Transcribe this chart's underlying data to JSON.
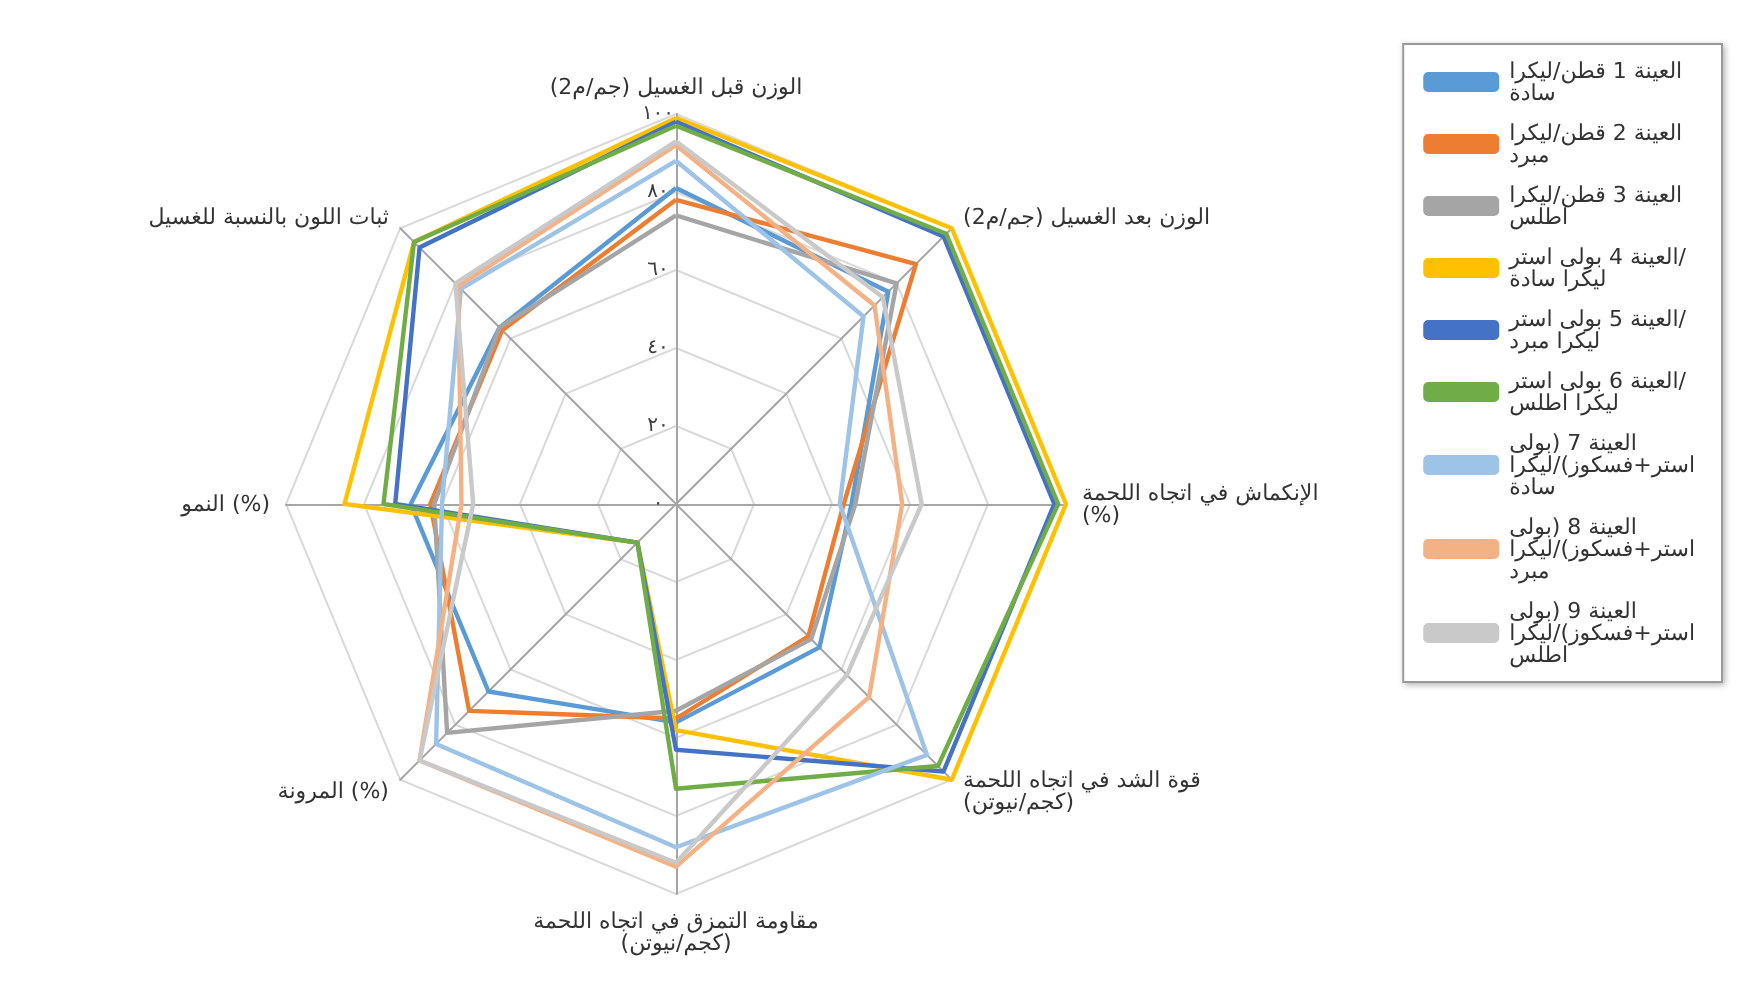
{
  "chart_data": {
    "type": "radar",
    "categories": [
      "الوزن قبل الغسيل (جم/م2)",
      "الوزن بعد الغسيل (جم/م2)",
      "الإنكماش في اتجاه اللحمة (%)",
      "قوة الشد في اتجاه اللحمة (كجم/نيوتن)",
      "مقاومة التمزق في اتجاه اللحمة (كجم/نيوتن)",
      "المرونة (%)",
      "النمو (%)",
      "ثبات اللون بالنسبة للغسيل"
    ],
    "series": [
      {
        "name": "العينة 1 قطن/ليكرا سادة",
        "color": "#5b9bd5",
        "values": [
          81,
          77,
          45,
          52,
          56,
          68,
          68,
          64
        ]
      },
      {
        "name": "العينة 2 قطن/ليكرا مبرد",
        "color": "#ed7d31",
        "values": [
          78,
          87,
          43,
          48,
          55,
          75,
          63,
          63
        ]
      },
      {
        "name": "العينة 3 قطن/ليكرا اطلس",
        "color": "#a5a5a5",
        "values": [
          74,
          80,
          46,
          49,
          53,
          83,
          62,
          64
        ]
      },
      {
        "name": "العينة 4 بولى استر/ليكرا سادة",
        "color": "#ffc000",
        "values": [
          99,
          100,
          100,
          100,
          58,
          14,
          85,
          95
        ]
      },
      {
        "name": "العينة 5 بولى استر/ليكرا مبرد",
        "color": "#4472c4",
        "values": [
          98,
          97,
          97,
          97,
          63,
          14,
          72,
          93
        ]
      },
      {
        "name": "العينة 6 بولى استر/ليكرا اطلس",
        "color": "#70ad47",
        "values": [
          97,
          98,
          98,
          95,
          73,
          14,
          75,
          95
        ]
      },
      {
        "name": "العينة 7 (بولى استر+فسكوز)/ليكرا سادة",
        "color": "#9dc3e6",
        "values": [
          88,
          68,
          42,
          91,
          88,
          87,
          60,
          78
        ]
      },
      {
        "name": "العينة 8 (بولى استر+فسكوز)/ليكرا مبرد",
        "color": "#f4b183",
        "values": [
          92,
          72,
          58,
          70,
          93,
          93,
          55,
          79
        ]
      },
      {
        "name": "العينة 9 (بولى استر+فسكوز)/ليكرا اطلس",
        "color": "#c9c9c9",
        "values": [
          93,
          75,
          63,
          62,
          92,
          93,
          52,
          80
        ]
      }
    ],
    "ylim": [
      0,
      100
    ],
    "yticks": [
      {
        "value": 0,
        "label": "٠"
      },
      {
        "value": 20,
        "label": "٢٠"
      },
      {
        "value": 40,
        "label": "٤٠"
      },
      {
        "value": 60,
        "label": "٦٠"
      },
      {
        "value": 80,
        "label": "٨٠"
      },
      {
        "value": 100,
        "label": "١٠٠"
      }
    ],
    "grid": true,
    "legend": "right",
    "marker": "none"
  }
}
